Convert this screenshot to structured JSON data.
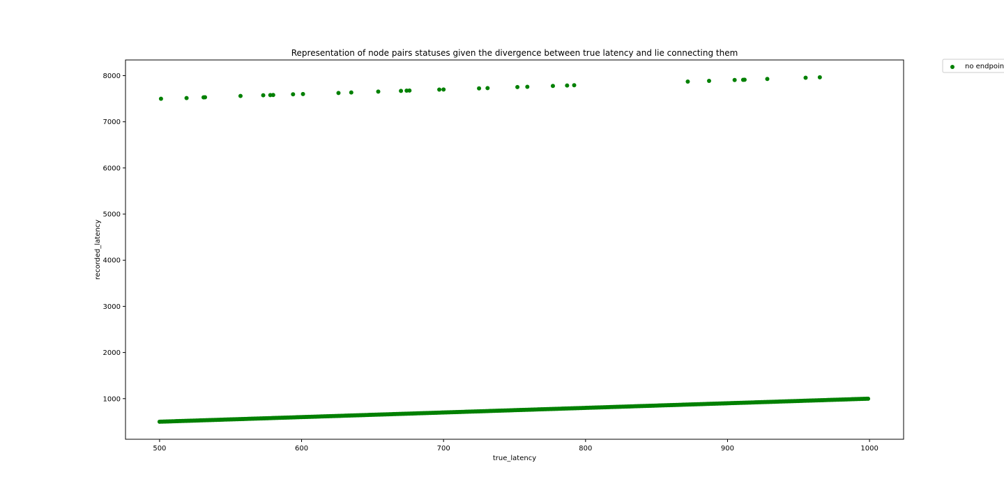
{
  "chart_data": {
    "type": "scatter",
    "title": "Representation of node pairs statuses given the divergence between true latency and lie connecting them",
    "xlabel": "true_latency",
    "ylabel": "recorded_latency",
    "xlim": [
      476,
      1024
    ],
    "ylim": [
      120,
      8340
    ],
    "xticks": [
      500,
      600,
      700,
      800,
      900,
      1000
    ],
    "yticks": [
      1000,
      2000,
      3000,
      4000,
      5000,
      6000,
      7000,
      8000
    ],
    "grid": false,
    "legend_position": "outside-top-right",
    "series": [
      {
        "name": "no endpoint",
        "color": "#008000",
        "dense_band": {
          "x_start": 500,
          "x_end": 999,
          "y_start": 500,
          "y_end": 999,
          "step": 1
        },
        "points": [
          [
            501,
            7500
          ],
          [
            519,
            7515
          ],
          [
            531,
            7530
          ],
          [
            532,
            7532
          ],
          [
            557,
            7560
          ],
          [
            573,
            7575
          ],
          [
            578,
            7578
          ],
          [
            580,
            7580
          ],
          [
            594,
            7595
          ],
          [
            601,
            7601
          ],
          [
            626,
            7625
          ],
          [
            635,
            7635
          ],
          [
            654,
            7655
          ],
          [
            670,
            7670
          ],
          [
            674,
            7675
          ],
          [
            676,
            7677
          ],
          [
            697,
            7697
          ],
          [
            700,
            7700
          ],
          [
            725,
            7725
          ],
          [
            731,
            7730
          ],
          [
            752,
            7752
          ],
          [
            759,
            7758
          ],
          [
            777,
            7777
          ],
          [
            787,
            7787
          ],
          [
            792,
            7792
          ],
          [
            872,
            7872
          ],
          [
            887,
            7887
          ],
          [
            905,
            7905
          ],
          [
            911,
            7910
          ],
          [
            912,
            7912
          ],
          [
            928,
            7928
          ],
          [
            955,
            7955
          ],
          [
            965,
            7965
          ]
        ]
      }
    ]
  }
}
